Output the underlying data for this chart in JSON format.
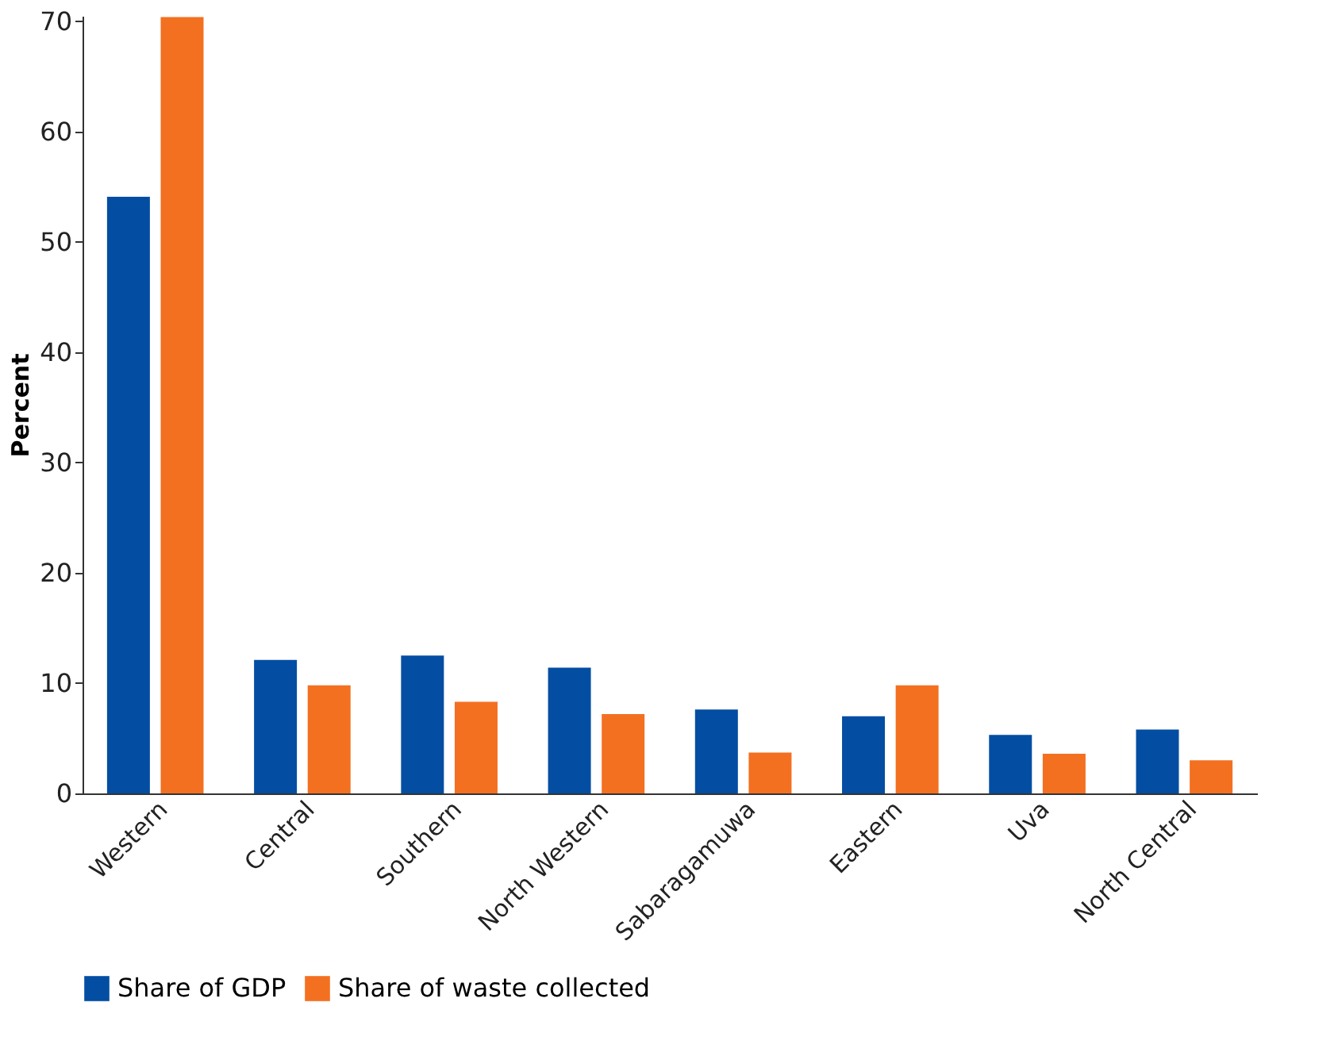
{
  "chart_data": {
    "type": "bar",
    "ylabel": "Percent",
    "categories": [
      "Western",
      "Central",
      "Southern",
      "North Western",
      "Sabaragamuwa",
      "Eastern",
      "Uva",
      "North Central"
    ],
    "series": [
      {
        "name": "Share of GDP",
        "color": "#034ea2",
        "values": [
          54.1,
          12.1,
          12.5,
          11.4,
          7.6,
          7.0,
          5.3,
          5.8
        ]
      },
      {
        "name": "Share of waste collected",
        "color": "#f37021",
        "values": [
          70.4,
          9.8,
          8.3,
          7.2,
          3.7,
          9.8,
          3.6,
          3.0
        ]
      }
    ],
    "ylim": [
      0,
      70.5
    ],
    "yticks": [
      0,
      10,
      20,
      30,
      40,
      50,
      60,
      70
    ],
    "grid": false,
    "legend": "bottom"
  }
}
